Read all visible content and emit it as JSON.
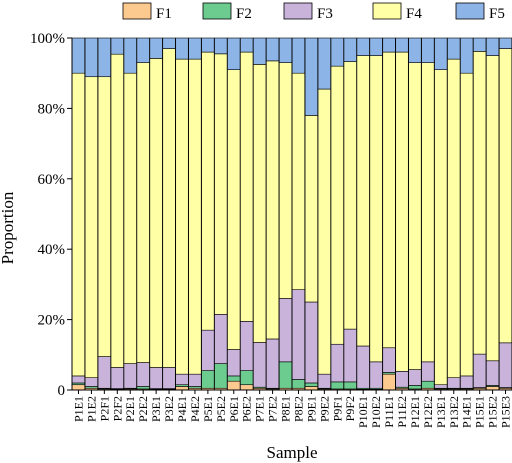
{
  "chart_data": {
    "type": "bar",
    "stacked": true,
    "normalized": true,
    "title": "",
    "xlabel": "Sample",
    "ylabel": "Proportion",
    "ylim": [
      0,
      100
    ],
    "yticks": [
      "0",
      "20%",
      "40%",
      "60%",
      "80%",
      "100%"
    ],
    "legend_position": "top",
    "grid": false,
    "categories": [
      "P1E1",
      "P1E2",
      "P2F1",
      "P2F2",
      "P2E1",
      "P2E2",
      "P3E1",
      "P3E2",
      "P4E1",
      "P4E2",
      "P5E1",
      "P5E2",
      "P6E1",
      "P6E2",
      "P7E1",
      "P7E2",
      "P8E1",
      "P8E2",
      "P9E1",
      "P9E2",
      "P9F1",
      "P9F2",
      "P10E1",
      "P10E2",
      "P11E1",
      "P11E2",
      "P12E1",
      "P12E2",
      "P13E1",
      "P13E2",
      "P14E1",
      "P15E1",
      "P15E2",
      "P15E3"
    ],
    "series": [
      {
        "name": "F1",
        "color": "#FCC98F",
        "values": [
          1.5,
          0.5,
          0.3,
          0.2,
          0.3,
          0.3,
          0.2,
          0.2,
          1.0,
          0.5,
          0.5,
          0.5,
          2.5,
          1.5,
          0.5,
          0.3,
          0.5,
          0.5,
          1.0,
          0.3,
          0.3,
          0.3,
          0.2,
          0.2,
          4.5,
          0.5,
          0.3,
          0.5,
          0.3,
          0.3,
          0.3,
          0.5,
          1.0,
          0.5
        ]
      },
      {
        "name": "F2",
        "color": "#6CCB8F",
        "values": [
          0.5,
          0.5,
          0.2,
          0.2,
          0.2,
          0.7,
          0.2,
          0.2,
          0.5,
          0.5,
          5.0,
          7.0,
          1.5,
          4.0,
          0.3,
          0.2,
          7.5,
          2.5,
          1.0,
          0.2,
          2.0,
          2.0,
          0.3,
          0.3,
          0.5,
          0.3,
          1.0,
          2.0,
          0.2,
          0.2,
          0.2,
          0.2,
          0.3,
          0.2
        ]
      },
      {
        "name": "F3",
        "color": "#C9B3DB",
        "values": [
          2.0,
          2.5,
          9.0,
          6.0,
          7.0,
          6.8,
          6.0,
          6.0,
          3.0,
          3.5,
          11.5,
          14.0,
          7.5,
          14.0,
          12.7,
          14.0,
          18.0,
          25.5,
          23.0,
          4.0,
          10.7,
          15.0,
          12.0,
          7.5,
          7.0,
          4.5,
          4.5,
          5.5,
          1.0,
          3.0,
          3.5,
          9.5,
          7.0,
          12.7
        ]
      },
      {
        "name": "F4",
        "color": "#FFFFA6",
        "values": [
          86.0,
          85.5,
          79.5,
          89.0,
          82.5,
          85.2,
          87.8,
          90.6,
          89.5,
          89.5,
          79.0,
          74.0,
          79.5,
          76.5,
          79.0,
          79.0,
          67.0,
          61.5,
          53.0,
          81.0,
          79.0,
          76.0,
          82.5,
          87.0,
          84.0,
          90.7,
          87.2,
          85.0,
          89.5,
          90.5,
          86.0,
          86.0,
          86.7,
          83.6
        ]
      },
      {
        "name": "F5",
        "color": "#8DB4E6",
        "values": [
          10.0,
          11.0,
          11.0,
          4.6,
          10.0,
          7.0,
          5.8,
          3.0,
          6.0,
          6.0,
          4.0,
          4.5,
          9.0,
          4.0,
          7.5,
          6.5,
          7.0,
          10.0,
          22.0,
          14.5,
          8.0,
          6.7,
          5.0,
          5.0,
          4.0,
          4.0,
          7.0,
          7.0,
          9.0,
          6.0,
          10.0,
          3.8,
          5.0,
          3.0
        ]
      }
    ]
  }
}
